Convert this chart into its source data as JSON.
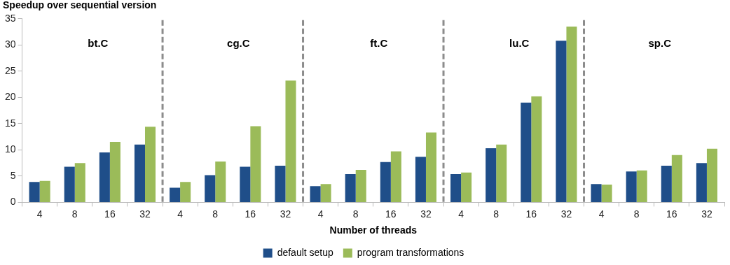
{
  "chart_data": {
    "type": "bar",
    "ylabel": "Speedup over sequential version",
    "xlabel": "Number of threads",
    "categories": [
      "4",
      "8",
      "16",
      "32",
      "4",
      "8",
      "16",
      "32",
      "4",
      "8",
      "16",
      "32",
      "4",
      "8",
      "16",
      "32",
      "4",
      "8",
      "16",
      "32"
    ],
    "series": [
      {
        "name": "default setup",
        "color": "#1f4e89",
        "values": [
          3.9,
          6.8,
          9.5,
          11,
          2.8,
          5.2,
          6.8,
          7,
          3.1,
          5.4,
          7.7,
          8.7,
          5.4,
          10.3,
          19,
          30.8,
          3.5,
          5.9,
          7,
          7.5
        ]
      },
      {
        "name": "program transformations",
        "color": "#9bbb59",
        "values": [
          4.1,
          7.5,
          11.5,
          14.4,
          3.9,
          7.8,
          14.5,
          23.2,
          3.5,
          6.2,
          9.7,
          13.3,
          5.7,
          11,
          20.2,
          33.5,
          3.4,
          6.1,
          9,
          10.2
        ]
      }
    ],
    "annotations": [
      "bt.C",
      "cg.C",
      "ft.C",
      "lu.C",
      "sp.C"
    ],
    "ylim": [
      0,
      35
    ],
    "yticks": [
      0,
      5,
      10,
      15,
      20,
      25,
      30,
      35
    ],
    "grid": false,
    "legend": "bottom"
  }
}
